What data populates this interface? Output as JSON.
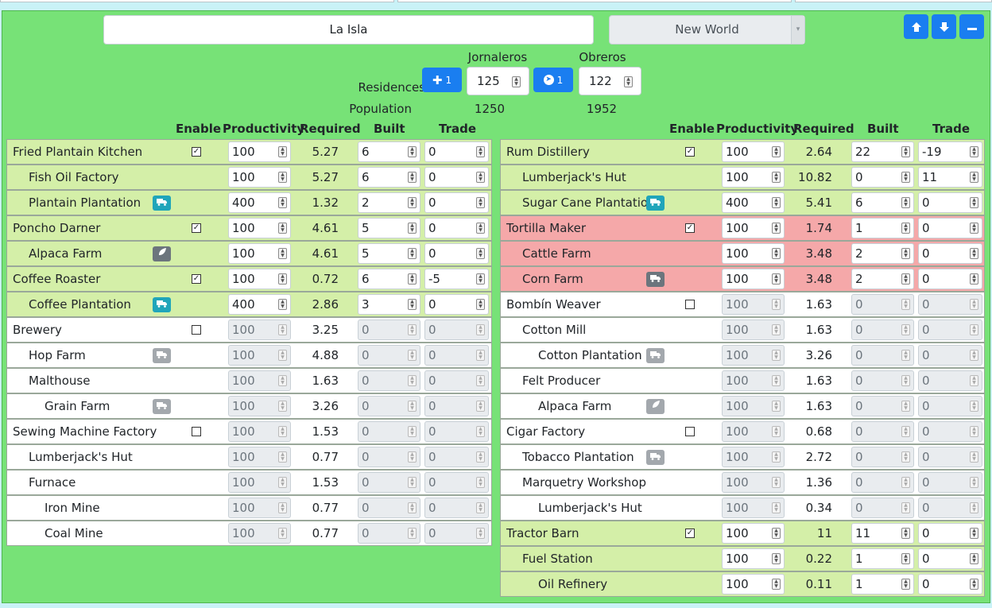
{
  "island_name": "La Isla",
  "region": "New World",
  "population_labels": {
    "residences": "Residences",
    "population": "Population"
  },
  "tiers": [
    {
      "name": "Jornaleros",
      "step_button": "1",
      "residences": "125",
      "population": "1250"
    },
    {
      "name": "Obreros",
      "step_button": "1",
      "residences": "122",
      "population": "1952"
    }
  ],
  "columns": {
    "enable": "Enable",
    "productivity": "Productivity",
    "required": "Required",
    "built": "Built",
    "trade": "Trade"
  },
  "colors": {
    "panel": "#77e277",
    "row_green": "#d4efa8",
    "row_red": "#f5a8a9",
    "button": "#1a7ef0"
  },
  "left_rows": [
    {
      "name": "Fried Plantain Kitchen",
      "level": 0,
      "style": "green",
      "checkbox": "checked",
      "badge": "",
      "productivity": "100",
      "required": "5.27",
      "built": "6",
      "trade": "0",
      "disabled": false
    },
    {
      "name": "Fish Oil Factory",
      "level": 1,
      "style": "green",
      "checkbox": "",
      "badge": "",
      "productivity": "100",
      "required": "5.27",
      "built": "6",
      "trade": "0",
      "disabled": false
    },
    {
      "name": "Plantain Plantation",
      "level": 1,
      "style": "green",
      "checkbox": "",
      "badge": "truck-teal",
      "productivity": "400",
      "required": "1.32",
      "built": "2",
      "trade": "0",
      "disabled": false
    },
    {
      "name": "Poncho Darner",
      "level": 0,
      "style": "green",
      "checkbox": "checked",
      "badge": "",
      "productivity": "100",
      "required": "4.61",
      "built": "5",
      "trade": "0",
      "disabled": false
    },
    {
      "name": "Alpaca Farm",
      "level": 1,
      "style": "green",
      "checkbox": "",
      "badge": "leaf-grey",
      "productivity": "100",
      "required": "4.61",
      "built": "5",
      "trade": "0",
      "disabled": false
    },
    {
      "name": "Coffee Roaster",
      "level": 0,
      "style": "green",
      "checkbox": "checked",
      "badge": "",
      "productivity": "100",
      "required": "0.72",
      "built": "6",
      "trade": "-5",
      "disabled": false
    },
    {
      "name": "Coffee Plantation",
      "level": 1,
      "style": "green",
      "checkbox": "",
      "badge": "truck-teal",
      "productivity": "400",
      "required": "2.86",
      "built": "3",
      "trade": "0",
      "disabled": false
    },
    {
      "name": "Brewery",
      "level": 0,
      "style": "white",
      "checkbox": "unchecked",
      "badge": "",
      "productivity": "100",
      "required": "3.25",
      "built": "0",
      "trade": "0",
      "disabled": true
    },
    {
      "name": "Hop Farm",
      "level": 1,
      "style": "white",
      "checkbox": "",
      "badge": "truck-light",
      "productivity": "100",
      "required": "4.88",
      "built": "0",
      "trade": "0",
      "disabled": true
    },
    {
      "name": "Malthouse",
      "level": 1,
      "style": "white",
      "checkbox": "",
      "badge": "",
      "productivity": "100",
      "required": "1.63",
      "built": "0",
      "trade": "0",
      "disabled": true
    },
    {
      "name": "Grain Farm",
      "level": 2,
      "style": "white",
      "checkbox": "",
      "badge": "truck-light",
      "productivity": "100",
      "required": "3.26",
      "built": "0",
      "trade": "0",
      "disabled": true
    },
    {
      "name": "Sewing Machine Factory",
      "level": 0,
      "style": "white",
      "checkbox": "unchecked",
      "badge": "",
      "productivity": "100",
      "required": "1.53",
      "built": "0",
      "trade": "0",
      "disabled": true
    },
    {
      "name": "Lumberjack's Hut",
      "level": 1,
      "style": "white",
      "checkbox": "",
      "badge": "",
      "productivity": "100",
      "required": "0.77",
      "built": "0",
      "trade": "0",
      "disabled": true
    },
    {
      "name": "Furnace",
      "level": 1,
      "style": "white",
      "checkbox": "",
      "badge": "",
      "productivity": "100",
      "required": "1.53",
      "built": "0",
      "trade": "0",
      "disabled": true
    },
    {
      "name": "Iron Mine",
      "level": 2,
      "style": "white",
      "checkbox": "",
      "badge": "",
      "productivity": "100",
      "required": "0.77",
      "built": "0",
      "trade": "0",
      "disabled": true
    },
    {
      "name": "Coal Mine",
      "level": 2,
      "style": "white",
      "checkbox": "",
      "badge": "",
      "productivity": "100",
      "required": "0.77",
      "built": "0",
      "trade": "0",
      "disabled": true
    }
  ],
  "right_rows": [
    {
      "name": "Rum Distillery",
      "level": 0,
      "style": "green",
      "checkbox": "checked",
      "badge": "",
      "productivity": "100",
      "required": "2.64",
      "built": "22",
      "trade": "-19",
      "disabled": false
    },
    {
      "name": "Lumberjack's Hut",
      "level": 1,
      "style": "green",
      "checkbox": "",
      "badge": "",
      "productivity": "100",
      "required": "10.82",
      "built": "0",
      "trade": "11",
      "disabled": false
    },
    {
      "name": "Sugar Cane Plantation",
      "level": 1,
      "style": "green",
      "checkbox": "",
      "badge": "truck-teal",
      "productivity": "400",
      "required": "5.41",
      "built": "6",
      "trade": "0",
      "disabled": false
    },
    {
      "name": "Tortilla Maker",
      "level": 0,
      "style": "red",
      "checkbox": "checked",
      "badge": "",
      "productivity": "100",
      "required": "1.74",
      "built": "1",
      "trade": "0",
      "disabled": false
    },
    {
      "name": "Cattle Farm",
      "level": 1,
      "style": "red",
      "checkbox": "",
      "badge": "",
      "productivity": "100",
      "required": "3.48",
      "built": "2",
      "trade": "0",
      "disabled": false
    },
    {
      "name": "Corn Farm",
      "level": 1,
      "style": "red",
      "checkbox": "",
      "badge": "truck-grey",
      "productivity": "100",
      "required": "3.48",
      "built": "2",
      "trade": "0",
      "disabled": false
    },
    {
      "name": "Bombín Weaver",
      "level": 0,
      "style": "white",
      "checkbox": "unchecked",
      "badge": "",
      "productivity": "100",
      "required": "1.63",
      "built": "0",
      "trade": "0",
      "disabled": true
    },
    {
      "name": "Cotton Mill",
      "level": 1,
      "style": "white",
      "checkbox": "",
      "badge": "",
      "productivity": "100",
      "required": "1.63",
      "built": "0",
      "trade": "0",
      "disabled": true
    },
    {
      "name": "Cotton Plantation",
      "level": 2,
      "style": "white",
      "checkbox": "",
      "badge": "truck-light",
      "productivity": "100",
      "required": "3.26",
      "built": "0",
      "trade": "0",
      "disabled": true
    },
    {
      "name": "Felt Producer",
      "level": 1,
      "style": "white",
      "checkbox": "",
      "badge": "",
      "productivity": "100",
      "required": "1.63",
      "built": "0",
      "trade": "0",
      "disabled": true
    },
    {
      "name": "Alpaca Farm",
      "level": 2,
      "style": "white",
      "checkbox": "",
      "badge": "leaf-light",
      "productivity": "100",
      "required": "1.63",
      "built": "0",
      "trade": "0",
      "disabled": true
    },
    {
      "name": "Cigar Factory",
      "level": 0,
      "style": "white",
      "checkbox": "unchecked",
      "badge": "",
      "productivity": "100",
      "required": "0.68",
      "built": "0",
      "trade": "0",
      "disabled": true
    },
    {
      "name": "Tobacco Plantation",
      "level": 1,
      "style": "white",
      "checkbox": "",
      "badge": "truck-light",
      "productivity": "100",
      "required": "2.72",
      "built": "0",
      "trade": "0",
      "disabled": true
    },
    {
      "name": "Marquetry Workshop",
      "level": 1,
      "style": "white",
      "checkbox": "",
      "badge": "",
      "productivity": "100",
      "required": "1.36",
      "built": "0",
      "trade": "0",
      "disabled": true
    },
    {
      "name": "Lumberjack's Hut",
      "level": 2,
      "style": "white",
      "checkbox": "",
      "badge": "",
      "productivity": "100",
      "required": "0.34",
      "built": "0",
      "trade": "0",
      "disabled": true
    },
    {
      "name": "Tractor Barn",
      "level": 0,
      "style": "green",
      "checkbox": "checked",
      "badge": "",
      "productivity": "100",
      "required": "11",
      "built": "11",
      "trade": "0",
      "disabled": false
    },
    {
      "name": "Fuel Station",
      "level": 1,
      "style": "green",
      "checkbox": "",
      "badge": "",
      "productivity": "100",
      "required": "0.22",
      "built": "1",
      "trade": "0",
      "disabled": false
    },
    {
      "name": "Oil Refinery",
      "level": 2,
      "style": "green",
      "checkbox": "",
      "badge": "",
      "productivity": "100",
      "required": "0.11",
      "built": "1",
      "trade": "0",
      "disabled": false
    }
  ]
}
